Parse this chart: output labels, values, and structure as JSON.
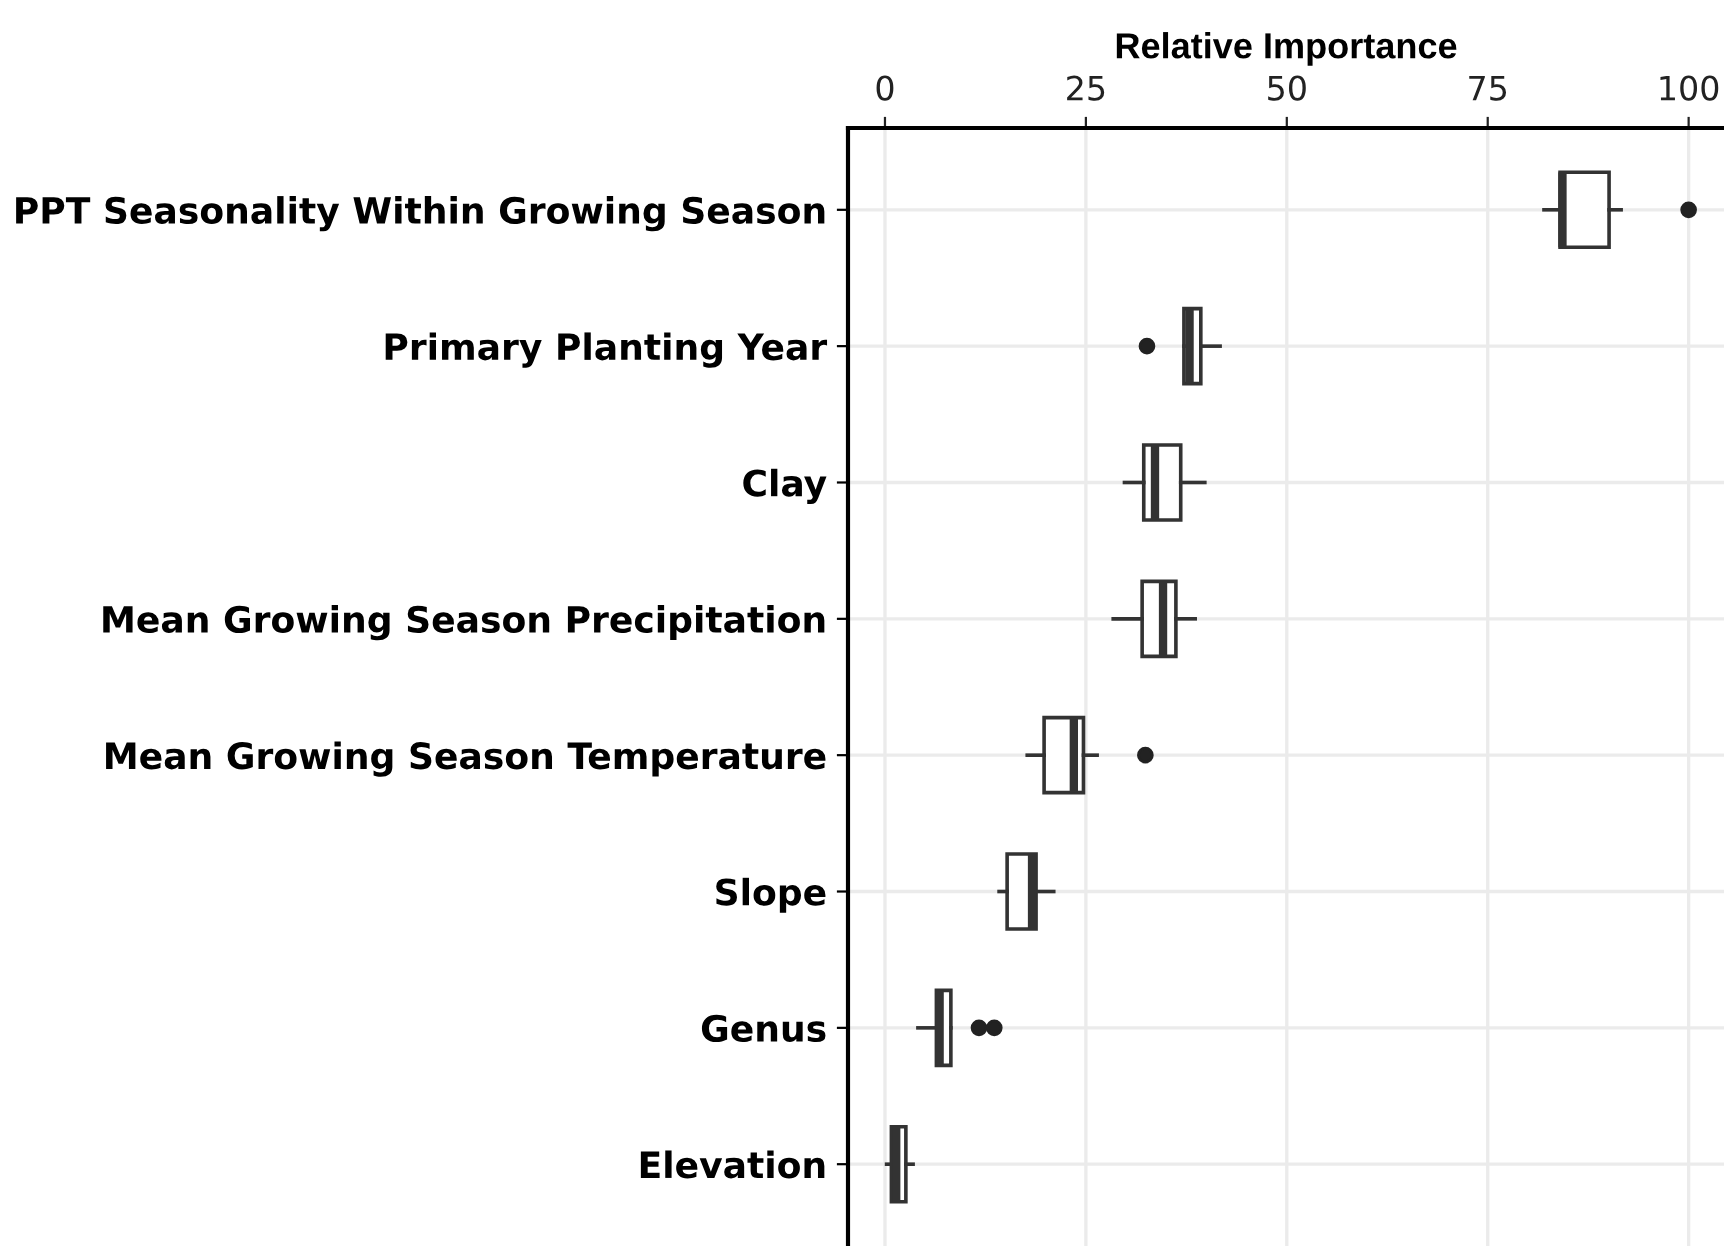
{
  "chart_data": {
    "type": "box",
    "orientation": "horizontal",
    "xlabel": "Relative Importance",
    "categories": [
      "PPT Seasonality Within Growing Season",
      "Primary Planting Year",
      "Clay",
      "Mean Growing Season Precipitation",
      "Mean Growing Season Temperature",
      "Slope",
      "Genus",
      "Elevation"
    ],
    "boxes": [
      {
        "low": 82.0,
        "q1": 84.0,
        "median": 84.3,
        "q3": 90.1,
        "high": 91.6,
        "outliers": [
          100
        ]
      },
      {
        "low": 37.2,
        "q1": 37.2,
        "median": 37.9,
        "q3": 39.3,
        "high": 41.7,
        "outliers": [
          32.6
        ]
      },
      {
        "low": 29.8,
        "q1": 32.2,
        "median": 33.6,
        "q3": 36.8,
        "high": 39.8
      },
      {
        "low": 28.4,
        "q1": 32.0,
        "median": 34.6,
        "q3": 36.2,
        "high": 38.6
      },
      {
        "low": 17.7,
        "q1": 19.8,
        "median": 23.5,
        "q3": 24.7,
        "high": 26.4,
        "outliers": [
          32.4
        ]
      },
      {
        "low": 14.2,
        "q1": 15.2,
        "median": 18.3,
        "q3": 18.8,
        "high": 21.0
      },
      {
        "low": 4.1,
        "q1": 6.4,
        "median": 6.8,
        "q3": 8.2,
        "high": 8.2,
        "outliers": [
          11.7,
          13.6
        ]
      },
      {
        "low": 0.2,
        "q1": 0.8,
        "median": 1.4,
        "q3": 2.6,
        "high": 3.5
      }
    ],
    "xlim": [
      -4.6,
      104.4
    ],
    "xticks": [
      0,
      25,
      50,
      75,
      100
    ],
    "grid": true
  }
}
